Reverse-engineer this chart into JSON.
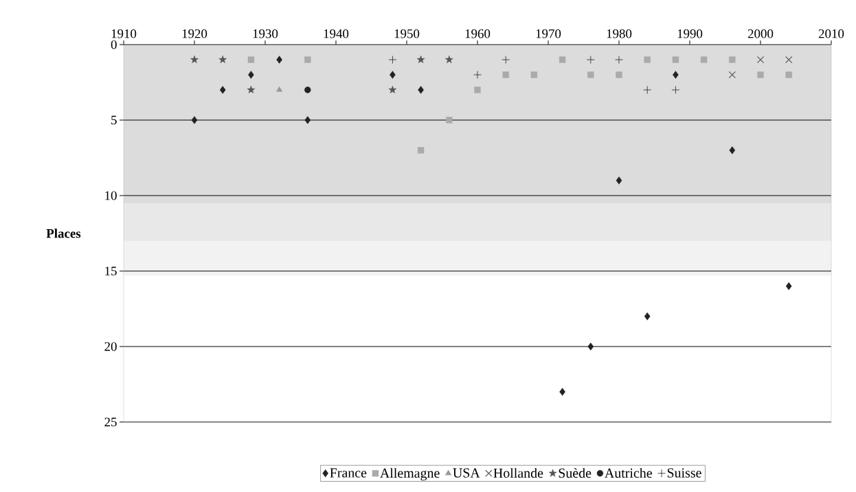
{
  "chart_data": {
    "type": "scatter",
    "ylabel": "Places",
    "xlim": [
      1910,
      2010
    ],
    "xticks": [
      1910,
      1920,
      1930,
      1940,
      1950,
      1960,
      1970,
      1980,
      1990,
      2000,
      2010
    ],
    "ylim": [
      25,
      0
    ],
    "yticks": [
      0,
      5,
      10,
      15,
      20,
      25
    ],
    "grid": "y",
    "legend": "bottom",
    "bands": [
      {
        "axis": "y",
        "from": 0,
        "to": 10.5,
        "color": "#dcdcdc"
      },
      {
        "axis": "y",
        "from": 10.5,
        "to": 13,
        "color": "#e8e8e8"
      },
      {
        "axis": "y",
        "from": 13,
        "to": 15.3,
        "color": "#f2f2f2"
      }
    ],
    "series": [
      {
        "name": "France",
        "color": "#222222",
        "marker": "diamond",
        "x": [
          1920,
          1924,
          1928,
          1932,
          1936,
          1948,
          1952,
          1972,
          1976,
          1980,
          1984,
          1988,
          1996,
          2004
        ],
        "values": [
          5,
          3,
          2,
          1,
          5,
          2,
          3,
          23,
          20,
          9,
          18,
          2,
          7,
          16
        ]
      },
      {
        "name": "Allemagne",
        "color": "#aaaaaa",
        "marker": "square",
        "x": [
          1928,
          1936,
          1952,
          1956,
          1960,
          1964,
          1968,
          1972,
          1976,
          1980,
          1984,
          1988,
          1992,
          1996,
          2000,
          2004
        ],
        "values": [
          1,
          1,
          7,
          5,
          3,
          2,
          2,
          1,
          2,
          2,
          1,
          1,
          1,
          1,
          2,
          2
        ]
      },
      {
        "name": "USA",
        "color": "#999999",
        "marker": "triangle",
        "x": [
          1932
        ],
        "values": [
          3
        ]
      },
      {
        "name": "Hollande",
        "color": "#555555",
        "marker": "cross",
        "x": [
          1996,
          2000,
          2004
        ],
        "values": [
          2,
          1,
          1
        ]
      },
      {
        "name": "Suède",
        "color": "#555555",
        "marker": "star",
        "x": [
          1920,
          1924,
          1928,
          1948,
          1952,
          1956
        ],
        "values": [
          1,
          1,
          3,
          3,
          1,
          1
        ]
      },
      {
        "name": "Autriche",
        "color": "#222222",
        "marker": "circle",
        "x": [
          1936
        ],
        "values": [
          3
        ]
      },
      {
        "name": "Suisse",
        "color": "#333333",
        "marker": "plus",
        "x": [
          1948,
          1960,
          1964,
          1976,
          1980,
          1984,
          1988
        ],
        "values": [
          1,
          2,
          1,
          1,
          1,
          3,
          3
        ]
      }
    ]
  }
}
